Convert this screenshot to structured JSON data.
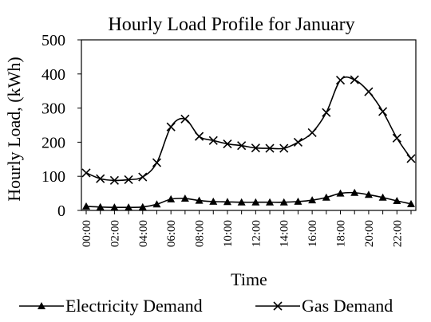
{
  "chart_data": {
    "type": "line",
    "title": "Hourly Load Profile for January",
    "xlabel": "Time",
    "ylabel": "Hourly Load, (kWh)",
    "ylim": [
      0,
      500
    ],
    "yticks": [
      0,
      100,
      200,
      300,
      400,
      500
    ],
    "x": [
      "00:00",
      "01:00",
      "02:00",
      "03:00",
      "04:00",
      "05:00",
      "06:00",
      "07:00",
      "08:00",
      "09:00",
      "10:00",
      "11:00",
      "12:00",
      "13:00",
      "14:00",
      "15:00",
      "16:00",
      "17:00",
      "18:00",
      "19:00",
      "20:00",
      "21:00",
      "22:00",
      "23:00"
    ],
    "xtick_labels": [
      "00:00",
      "02:00",
      "04:00",
      "06:00",
      "08:00",
      "10:00",
      "12:00",
      "14:00",
      "16:00",
      "18:00",
      "20:00",
      "22:00"
    ],
    "series": [
      {
        "name": "Electricity Demand",
        "marker": "triangle",
        "color": "#000000",
        "values": [
          12,
          10,
          9,
          9,
          10,
          18,
          33,
          35,
          29,
          26,
          25,
          24,
          24,
          24,
          24,
          26,
          30,
          38,
          50,
          52,
          46,
          38,
          28,
          19
        ]
      },
      {
        "name": "Gas Demand",
        "marker": "x",
        "color": "#000000",
        "values": [
          110,
          93,
          88,
          90,
          98,
          140,
          245,
          268,
          217,
          205,
          195,
          190,
          183,
          182,
          182,
          200,
          228,
          287,
          382,
          383,
          348,
          290,
          212,
          152
        ]
      }
    ],
    "grid": false,
    "legend_position": "bottom"
  }
}
